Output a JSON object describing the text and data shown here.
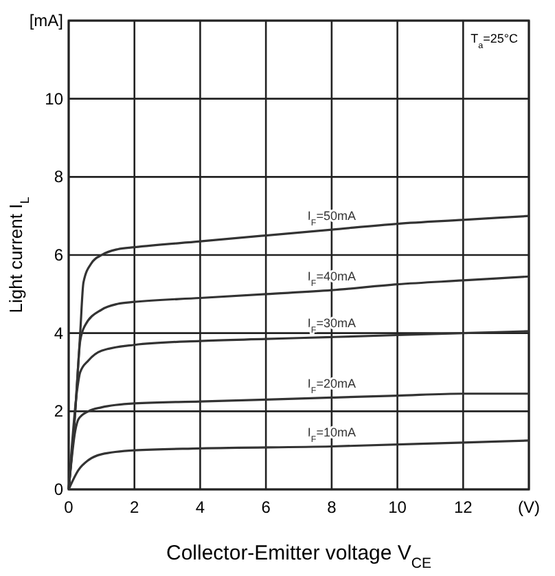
{
  "chart_data": {
    "type": "line",
    "xlabel": "Collector-Emitter voltage V$_{CE}$",
    "ylabel": "Light current I$_{L}$",
    "annotations": [
      "T$_{a}$=25°C"
    ],
    "xlim": [
      0,
      14
    ],
    "ylim": [
      0,
      12
    ],
    "xticks": [
      0,
      2,
      4,
      6,
      8,
      10,
      12,
      {
        "value": 14,
        "label": "(V)"
      }
    ],
    "yticks": [
      0,
      2,
      4,
      6,
      8,
      10,
      {
        "value": 12,
        "label": "[mA]"
      }
    ],
    "grid": true,
    "marker": "none",
    "line_style": "solid",
    "series": [
      {
        "name": "I$_{F}$=50mA",
        "color": "#333333",
        "x": [
          0,
          0.2,
          0.35,
          0.45,
          0.7,
          1,
          1.5,
          2,
          4,
          6,
          8,
          10,
          12,
          14
        ],
        "values": [
          0,
          2,
          4,
          5.3,
          5.8,
          6.0,
          6.15,
          6.2,
          6.35,
          6.5,
          6.65,
          6.8,
          6.9,
          7.0
        ]
      },
      {
        "name": "I$_{F}$=40mA",
        "color": "#333333",
        "x": [
          0,
          0.2,
          0.35,
          0.5,
          1,
          1.5,
          2,
          4,
          6,
          8,
          10,
          12,
          14
        ],
        "values": [
          0,
          2,
          3.8,
          4.2,
          4.6,
          4.75,
          4.8,
          4.9,
          5.0,
          5.1,
          5.25,
          5.35,
          5.45
        ]
      },
      {
        "name": "I$_{F}$=30mA",
        "color": "#333333",
        "x": [
          0,
          0.25,
          0.35,
          0.6,
          1,
          2,
          4,
          6,
          8,
          10,
          12,
          14
        ],
        "values": [
          0,
          2.5,
          3.0,
          3.3,
          3.55,
          3.7,
          3.8,
          3.85,
          3.9,
          3.95,
          4.0,
          4.05
        ]
      },
      {
        "name": "I$_{F}$=20mA",
        "color": "#333333",
        "x": [
          0,
          0.2,
          0.3,
          0.6,
          1,
          2,
          4,
          6,
          8,
          10,
          12,
          14
        ],
        "values": [
          0,
          1.5,
          1.8,
          2.0,
          2.1,
          2.2,
          2.25,
          2.3,
          2.35,
          2.4,
          2.45,
          2.45
        ]
      },
      {
        "name": "I$_{F}$=10mA",
        "color": "#333333",
        "x": [
          0,
          0.3,
          0.6,
          1,
          2,
          4,
          8,
          12,
          14
        ],
        "values": [
          0,
          0.5,
          0.75,
          0.9,
          1.0,
          1.05,
          1.1,
          1.2,
          1.25
        ]
      }
    ]
  }
}
